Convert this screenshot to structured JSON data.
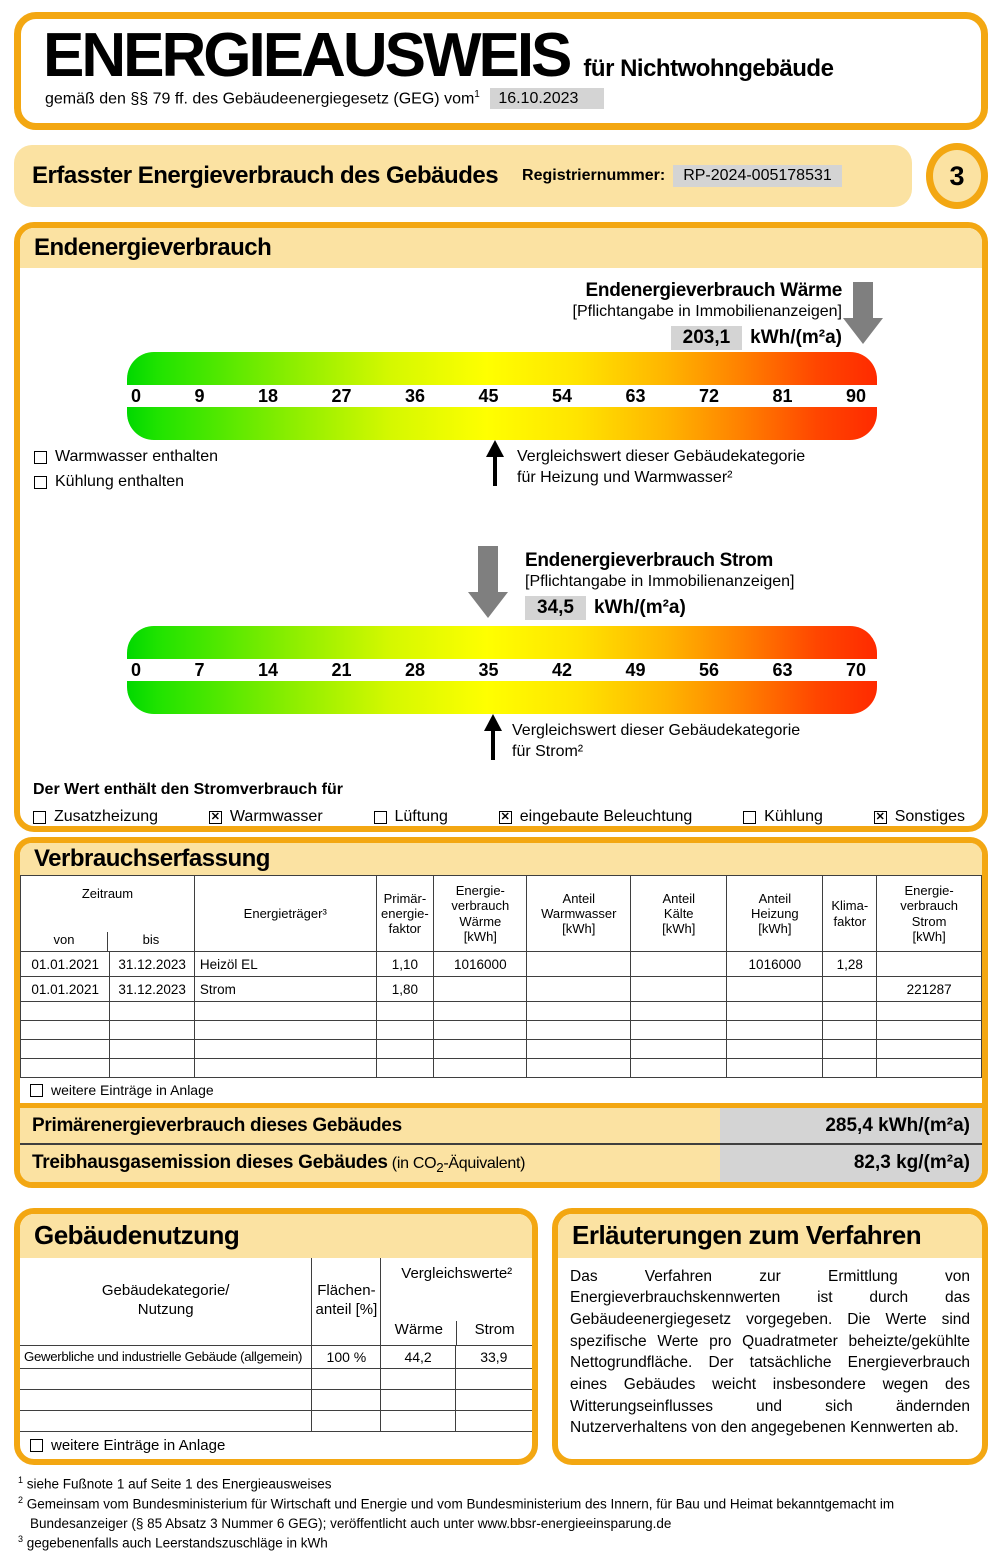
{
  "colors": {
    "accent_orange": "#F3A712",
    "peach_fill": "#FBE2A2",
    "gray_field": "#D4D4D4",
    "arrow_gray": "#7F7F7F",
    "scale_gradient": [
      "#00D800 0%",
      "#1FE300 4%",
      "#8CEE00 22%",
      "#D4F800 35%",
      "#FFFF00 48%",
      "#FFE400 60%",
      "#FFB400 72%",
      "#FF8000 82%",
      "#FF4600 92%",
      "#FF2A00 100%"
    ]
  },
  "header": {
    "title": "ENERGIEAUSWEIS",
    "title_suffix": "für Nichtwohngebäude",
    "law_text": "gemäß den §§ 79 ff. des Gebäudeenergiegesetz (GEG) vom",
    "law_footnote_mark": "1",
    "law_date": "16.10.2023"
  },
  "page_bar": {
    "title": "Erfasster Energieverbrauch des Gebäudes",
    "reg_label": "Registriernummer:",
    "reg_value": "RP-2024-005178531",
    "page_number": "3"
  },
  "endenergie": {
    "section_title": "Endenergieverbrauch",
    "waerme": {
      "title": "Endenergieverbrauch Wärme",
      "subtitle": "[Pflichtangabe in Immobilienanzeigen]",
      "value": "203,1",
      "unit": "kWh/(m²a)",
      "ticks": [
        "0",
        "9",
        "18",
        "27",
        "36",
        "45",
        "54",
        "63",
        "72",
        "81",
        "90"
      ],
      "checkboxes": [
        {
          "label": "Warmwasser enthalten",
          "checked": false
        },
        {
          "label": "Kühlung enthalten",
          "checked": false
        }
      ],
      "vergleich_line1": "Vergleichswert dieser Gebäudekategorie",
      "vergleich_line2": "für Heizung und Warmwasser²"
    },
    "strom": {
      "title": "Endenergieverbrauch Strom",
      "subtitle": "[Pflichtangabe in Immobilienanzeigen]",
      "value": "34,5",
      "unit": "kWh/(m²a)",
      "ticks": [
        "0",
        "7",
        "14",
        "21",
        "28",
        "35",
        "42",
        "49",
        "56",
        "63",
        "70"
      ],
      "vergleich_line1": "Vergleichswert dieser Gebäudekategorie",
      "vergleich_line2": "für Strom²"
    },
    "strom_includes": {
      "label": "Der Wert enthält den Stromverbrauch für",
      "items": [
        {
          "label": "Zusatzheizung",
          "checked": false
        },
        {
          "label": "Warmwasser",
          "checked": true
        },
        {
          "label": "Lüftung",
          "checked": false
        },
        {
          "label": "eingebaute Beleuchtung",
          "checked": true
        },
        {
          "label": "Kühlung",
          "checked": false
        },
        {
          "label": "Sonstiges",
          "checked": true
        }
      ]
    }
  },
  "verbrauchserfassung": {
    "section_title": "Verbrauchserfassung",
    "columns": {
      "zeitraum": "Zeitraum",
      "von": "von",
      "bis": "bis",
      "traeger": "Energieträger³",
      "pef": "Primär-\nenergie-\nfaktor",
      "ev_waerme": "Energie-\nverbrauch\nWärme\n[kWh]",
      "anteil_ww": "Anteil\nWarmwasser\n[kWh]",
      "anteil_kaelte": "Anteil\nKälte\n[kWh]",
      "anteil_heizung": "Anteil\nHeizung\n[kWh]",
      "klima": "Klima-\nfaktor",
      "ev_strom": "Energie-\nverbrauch\nStrom\n[kWh]"
    },
    "rows": [
      [
        "01.01.2021",
        "31.12.2023",
        "Heizöl EL",
        "1,10",
        "1016000",
        "",
        "",
        "1016000",
        "1,28",
        ""
      ],
      [
        "01.01.2021",
        "31.12.2023",
        "Strom",
        "1,80",
        "",
        "",
        "",
        "",
        "",
        "221287"
      ]
    ],
    "empty_rows": 4,
    "more_note": "weitere Einträge in Anlage"
  },
  "summary": {
    "primaer_label": "Primärenergieverbrauch dieses Gebäudes",
    "primaer_value": "285,4 kWh/(m²a)",
    "treibhaus_label": "Treibhausgasemission dieses Gebäudes",
    "treibhaus_suffix_pre": " (in CO",
    "treibhaus_sub": "2",
    "treibhaus_suffix_post": "-Äquivalent)",
    "treibhaus_value": "82,3 kg/(m²a)"
  },
  "gebaeudenutzung": {
    "section_title": "Gebäudenutzung",
    "columns": {
      "kategorie": "Gebäudekategorie/\nNutzung",
      "flaeche": "Flächen-\nanteil [%]",
      "vergleich": "Vergleichswerte²",
      "waerme": "Wärme",
      "strom": "Strom"
    },
    "rows": [
      [
        "Gewerbliche und industrielle Gebäude (allgemein)",
        "100 %",
        "44,2",
        "33,9"
      ]
    ],
    "empty_rows": 3,
    "more_note": "weitere Einträge in Anlage"
  },
  "erlaeuterungen": {
    "section_title": "Erläuterungen zum Verfahren",
    "text": "Das Verfahren zur Ermittlung von Energieverbrauchskennwerten ist durch das Gebäudeenergiegesetz vorgegeben. Die Werte sind spezifische Werte pro Quadratmeter beheizte/gekühlte Nettogrundfläche. Der tatsächliche Energieverbrauch eines Gebäudes weicht insbesondere wegen des Witterungseinflusses und sich ändernden Nutzerverhaltens von den angegebenen Kennwerten ab."
  },
  "footnotes": [
    {
      "mark": "1",
      "text": "siehe Fußnote 1 auf Seite 1 des Energieausweises"
    },
    {
      "mark": "2",
      "text": "Gemeinsam vom Bundesministerium für Wirtschaft und Energie und vom Bundesministerium des Innern, für Bau und Heimat bekanntgemacht im Bundesanzeiger (§ 85 Absatz 3 Nummer 6 GEG); veröffentlicht auch unter www.bbsr-energieeinsparung.de"
    },
    {
      "mark": "3",
      "text": "gegebenenfalls auch Leerstandszuschläge in kWh"
    }
  ]
}
